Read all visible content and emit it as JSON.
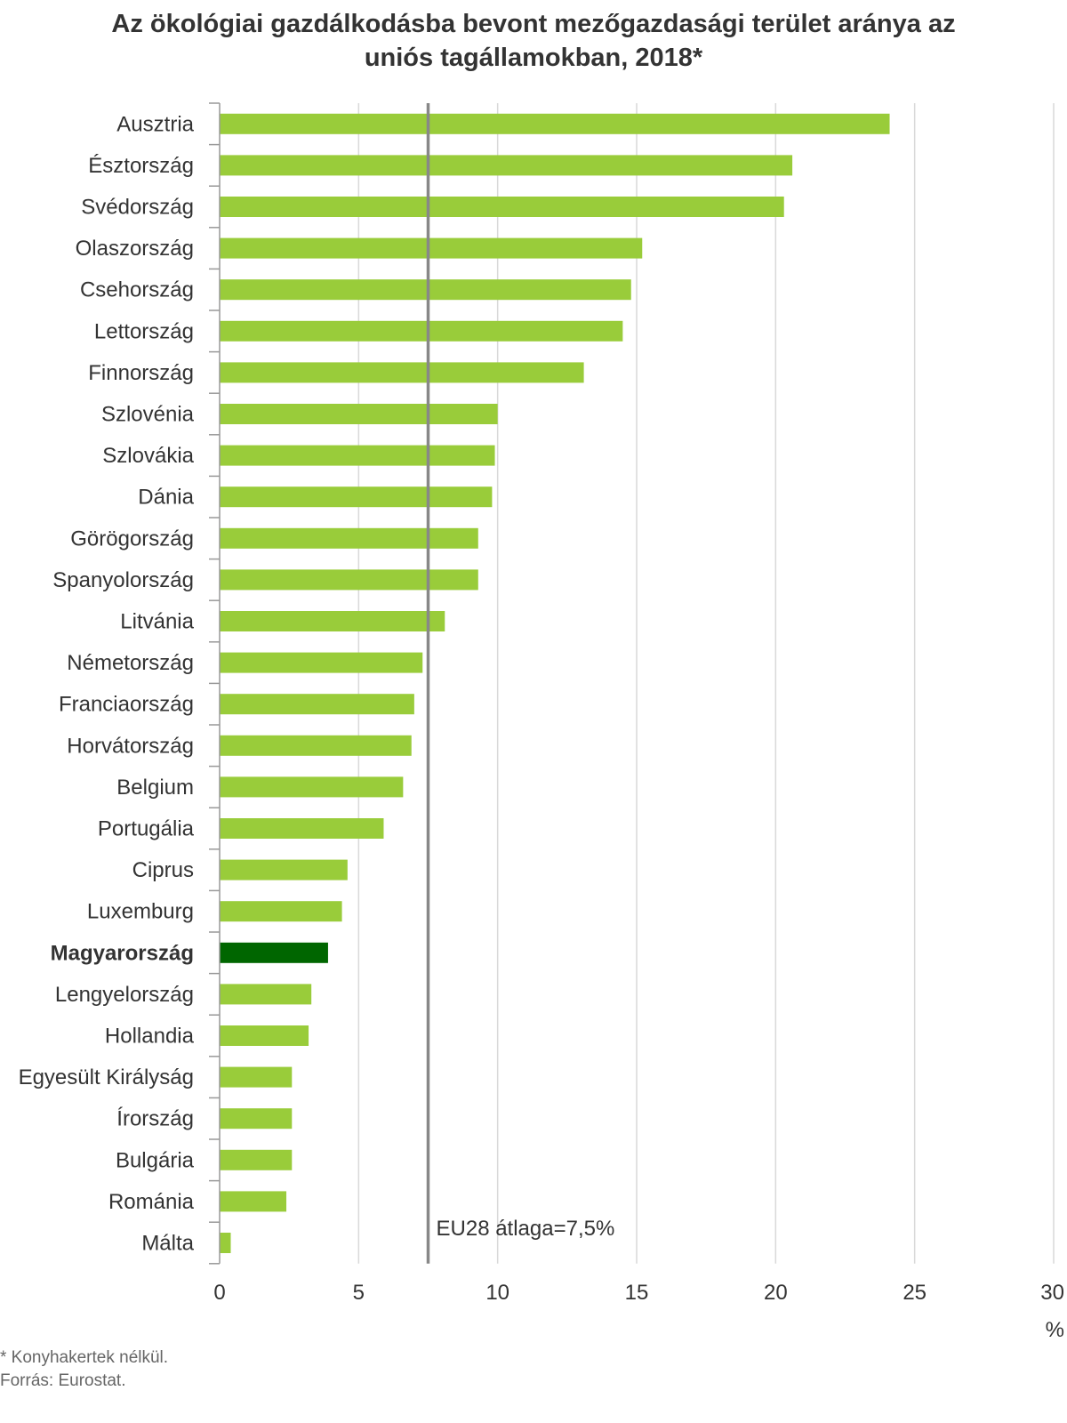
{
  "title_line1": "Az ökológiai gazdálkodásba bevont mezőgazdasági terület aránya az",
  "title_line2": "uniós tagállamokban, 2018*",
  "footnote": "* Konyhakertek nélkül.",
  "source": "Forrás: Eurostat.",
  "colors": {
    "bar": "#99cc3a",
    "highlight": "#006600",
    "avg_line": "#888888",
    "grid": "#d9d9d9",
    "axis": "#999999"
  },
  "chart_data": {
    "type": "bar",
    "orientation": "horizontal",
    "categories": [
      "Ausztria",
      "Észtország",
      "Svédország",
      "Olaszország",
      "Csehország",
      "Lettország",
      "Finnország",
      "Szlovénia",
      "Szlovákia",
      "Dánia",
      "Görögország",
      "Spanyolország",
      "Litvánia",
      "Németország",
      "Franciaország",
      "Horvátország",
      "Belgium",
      "Portugália",
      "Ciprus",
      "Luxemburg",
      "Magyarország",
      "Lengyelország",
      "Hollandia",
      "Egyesült Királyság",
      "Írország",
      "Bulgária",
      "Románia",
      "Málta"
    ],
    "values": [
      24.1,
      20.6,
      20.3,
      15.2,
      14.8,
      14.5,
      13.1,
      10.0,
      9.9,
      9.8,
      9.3,
      9.3,
      8.1,
      7.3,
      7.0,
      6.9,
      6.6,
      5.9,
      4.6,
      4.4,
      3.9,
      3.3,
      3.2,
      2.6,
      2.6,
      2.6,
      2.4,
      0.4
    ],
    "highlight": "Magyarország",
    "xlim": [
      0,
      30
    ],
    "xticks": [
      "0",
      "5",
      "10",
      "15",
      "20",
      "25",
      "30"
    ],
    "x_unit": "%",
    "reference_line": {
      "value": 7.5,
      "label": "EU28 átlaga=7,5%"
    },
    "grid": true,
    "legend": false
  }
}
